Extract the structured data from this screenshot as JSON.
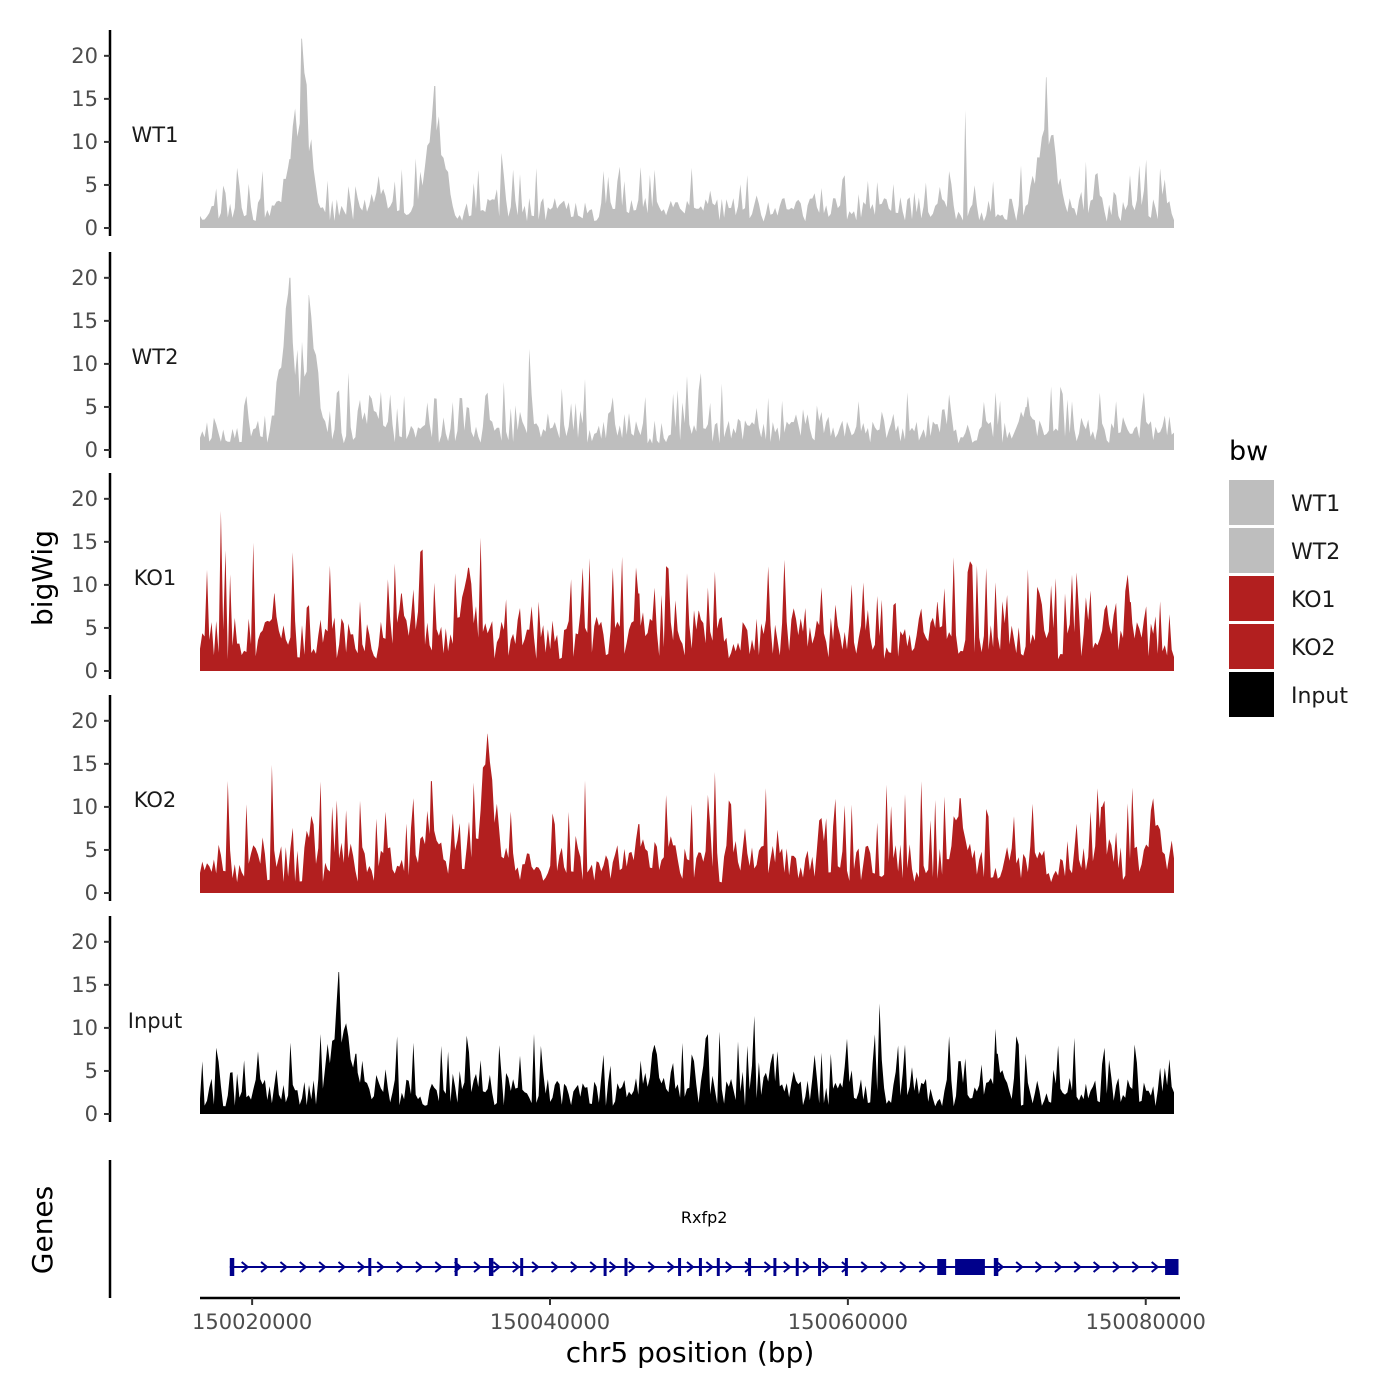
{
  "chart_data": {
    "type": "area",
    "ylabel": "bigWig",
    "xlabel": "chr5 position (bp)",
    "xlim": [
      150016500,
      150082300
    ],
    "ylim": [
      0,
      23
    ],
    "y_ticks": [
      0,
      5,
      10,
      15,
      20
    ],
    "x_ticks": [
      {
        "value": 150020000,
        "label": "150020000"
      },
      {
        "value": 150040000,
        "label": "150040000"
      },
      {
        "value": 150060000,
        "label": "150060000"
      },
      {
        "value": 150080000,
        "label": "150080000"
      }
    ],
    "signal_start": 150016500,
    "signal_end": 150081900,
    "series": [
      {
        "name": "WT1",
        "color": "#bebebe",
        "peaks": [
          [
            150022500,
            8
          ],
          [
            150023300,
            22
          ],
          [
            150028500,
            6
          ],
          [
            150032300,
            16.5
          ],
          [
            150048500,
            3
          ],
          [
            150073300,
            17.5
          ]
        ],
        "baseline": 2.5,
        "seed": 11
      },
      {
        "name": "WT2",
        "color": "#bebebe",
        "peaks": [
          [
            150022500,
            20
          ],
          [
            150023800,
            18
          ],
          [
            150028000,
            6
          ],
          [
            150040000,
            2.5
          ],
          [
            150072000,
            5
          ]
        ],
        "baseline": 2.5,
        "seed": 23
      },
      {
        "name": "KO1",
        "color": "#b21f1f",
        "peaks": [
          [
            150021500,
            9
          ],
          [
            150030000,
            9
          ],
          [
            150034500,
            12
          ],
          [
            150046000,
            9
          ],
          [
            150050000,
            7
          ],
          [
            150066000,
            8
          ],
          [
            150079000,
            8
          ]
        ],
        "baseline": 4.5,
        "seed": 37
      },
      {
        "name": "KO2",
        "color": "#b21f1f",
        "peaks": [
          [
            150032000,
            13
          ],
          [
            150035800,
            18.5
          ],
          [
            150046000,
            8
          ],
          [
            150067500,
            11
          ],
          [
            150077000,
            10
          ],
          [
            150080500,
            11
          ]
        ],
        "baseline": 4,
        "seed": 51
      },
      {
        "name": "Input",
        "color": "#000000",
        "peaks": [
          [
            150025800,
            16.5
          ],
          [
            150027000,
            7
          ],
          [
            150047000,
            8
          ],
          [
            150055000,
            7
          ],
          [
            150070000,
            7
          ]
        ],
        "baseline": 3,
        "seed": 67
      }
    ],
    "legend": {
      "title": "bw",
      "position": "right",
      "entries": [
        {
          "label": "WT1",
          "color": "#bebebe"
        },
        {
          "label": "WT2",
          "color": "#bebebe"
        },
        {
          "label": "KO1",
          "color": "#b21f1f"
        },
        {
          "label": "KO2",
          "color": "#b21f1f"
        },
        {
          "label": "Input",
          "color": "#000000"
        }
      ]
    },
    "genes": {
      "ylabel": "Genes",
      "color": "#00008b",
      "items": [
        {
          "name": "Rxfp2",
          "start": 150018500,
          "end": 150082200,
          "strand": "+",
          "exons": [
            [
              150018500,
              150018800
            ],
            [
              150027800,
              150028000
            ],
            [
              150033600,
              150033800
            ],
            [
              150035900,
              150036200
            ],
            [
              150038000,
              150038200
            ],
            [
              150043600,
              150043800
            ],
            [
              150045000,
              150045200
            ],
            [
              150048600,
              150048800
            ],
            [
              150050000,
              150050200
            ],
            [
              150051200,
              150051400
            ],
            [
              150053300,
              150053500
            ],
            [
              150055000,
              150055200
            ],
            [
              150056500,
              150056700
            ],
            [
              150058000,
              150058200
            ],
            [
              150059800,
              150060000
            ],
            [
              150066000,
              150066600
            ],
            [
              150067200,
              150069200
            ],
            [
              150069800,
              150070100
            ],
            [
              150081300,
              150082200
            ]
          ]
        }
      ]
    }
  }
}
